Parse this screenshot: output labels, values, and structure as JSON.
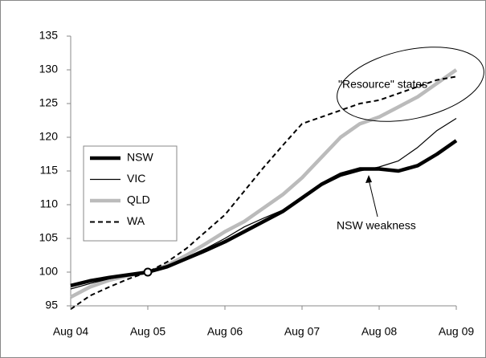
{
  "chart_data": {
    "type": "line",
    "categories": [
      "Aug 04",
      null,
      null,
      null,
      "Aug 05",
      null,
      null,
      null,
      "Aug 06",
      null,
      null,
      null,
      "Aug 07",
      null,
      null,
      null,
      "Aug 08",
      null,
      null,
      null,
      "Aug 09"
    ],
    "series": [
      {
        "name": "NSW",
        "color": "#000000",
        "linestyle": "solid",
        "values": [
          98,
          98.7,
          99.2,
          99.6,
          100,
          100.8,
          102,
          103.2,
          104.5,
          106,
          107.5,
          109,
          111,
          113,
          114.5,
          115.3,
          115.3,
          115,
          115.8,
          117.5,
          119.5
        ]
      },
      {
        "name": "VIC",
        "color": "#000000",
        "linestyle": "solid",
        "values": [
          97.5,
          98.3,
          99,
          99.5,
          100,
          100.8,
          102.2,
          103.5,
          105,
          106.7,
          108,
          109.2,
          110.8,
          112.8,
          114.2,
          115,
          115.6,
          116.5,
          118.5,
          121,
          122.8
        ]
      },
      {
        "name": "QLD",
        "color": "#bbbbbb",
        "linestyle": "solid",
        "values": [
          96.3,
          97.8,
          98.8,
          99.5,
          100,
          101,
          102.5,
          104.2,
          106,
          107.5,
          109.5,
          111.5,
          114,
          117,
          120,
          122,
          123,
          124.5,
          126,
          128,
          130
        ]
      },
      {
        "name": "WA",
        "color": "#000000",
        "linestyle": "dashed",
        "values": [
          94.5,
          96.5,
          97.8,
          99,
          100,
          101.5,
          103.5,
          106,
          108.5,
          112,
          115.5,
          118.8,
          122,
          123,
          124,
          125,
          125.5,
          126.5,
          127.5,
          128.5,
          129
        ]
      }
    ],
    "ylim": [
      95,
      135
    ],
    "yticks": [
      95,
      100,
      105,
      110,
      115,
      120,
      125,
      130,
      135
    ],
    "grid": false,
    "legend": "left",
    "annotations": [
      "\"Resource\" states",
      "NSW weakness"
    ]
  }
}
